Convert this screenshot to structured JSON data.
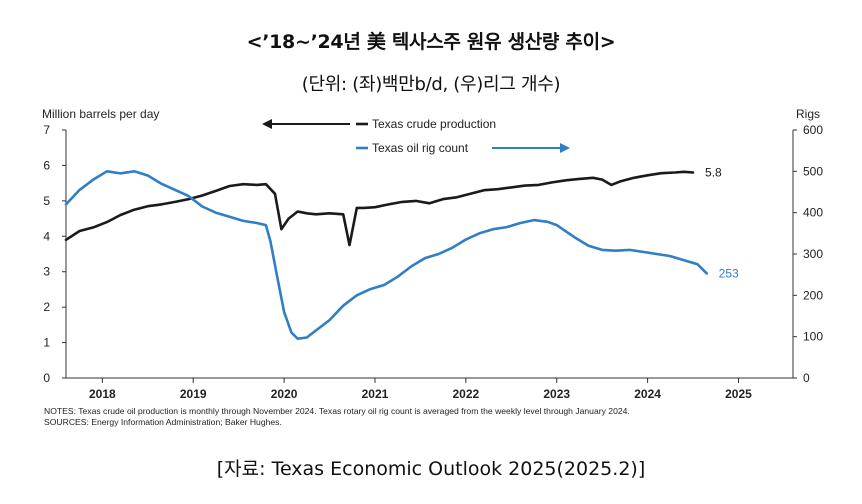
{
  "title_line1": "<’18~’24년 美 텍사스주 원유 생산량 추이>",
  "title_line2": "(단위: (좌)백만b/d, (우)리그 개수)",
  "source": "[자료: Texas Economic Outlook 2025(2025.2)]",
  "chart_data": {
    "type": "line",
    "left_axis_label": "Million barrels per day",
    "right_axis_label": "Rigs",
    "left_ylim": [
      0,
      7
    ],
    "right_ylim": [
      0,
      600
    ],
    "left_ticks": [
      "0",
      "1",
      "2",
      "3",
      "4",
      "5",
      "6",
      "7"
    ],
    "right_ticks": [
      "0",
      "100",
      "200",
      "300",
      "400",
      "500",
      "600"
    ],
    "x_ticks": [
      "2018",
      "2019",
      "2020",
      "2021",
      "2022",
      "2023",
      "2024",
      "2025"
    ],
    "xlim": [
      2017.6,
      2025.6
    ],
    "grid": false,
    "legend": [
      {
        "name": "Texas crude production",
        "color": "#1a1a1a",
        "axis": "left"
      },
      {
        "name": "Texas oil rig count",
        "color": "#2f7ec6",
        "axis": "right"
      }
    ],
    "series": [
      {
        "name": "Texas crude production",
        "color": "#1a1a1a",
        "axis": "left",
        "end_label": "5.8",
        "x": [
          2017.6,
          2017.75,
          2017.9,
          2018.05,
          2018.2,
          2018.35,
          2018.5,
          2018.65,
          2018.8,
          2018.95,
          2019.1,
          2019.25,
          2019.4,
          2019.55,
          2019.7,
          2019.8,
          2019.9,
          2019.97,
          2020.05,
          2020.15,
          2020.25,
          2020.35,
          2020.5,
          2020.65,
          2020.72,
          2020.8,
          2020.88,
          2021.0,
          2021.15,
          2021.3,
          2021.45,
          2021.6,
          2021.75,
          2021.9,
          2022.05,
          2022.2,
          2022.35,
          2022.5,
          2022.65,
          2022.8,
          2022.95,
          2023.1,
          2023.25,
          2023.4,
          2023.5,
          2023.6,
          2023.7,
          2023.85,
          2024.0,
          2024.15,
          2024.3,
          2024.4,
          2024.5
        ],
        "values": [
          3.9,
          4.15,
          4.25,
          4.4,
          4.6,
          4.75,
          4.85,
          4.9,
          4.97,
          5.05,
          5.15,
          5.28,
          5.42,
          5.47,
          5.45,
          5.47,
          5.2,
          4.2,
          4.5,
          4.7,
          4.65,
          4.62,
          4.65,
          4.62,
          3.75,
          4.8,
          4.8,
          4.82,
          4.9,
          4.97,
          5.0,
          4.93,
          5.05,
          5.1,
          5.2,
          5.3,
          5.33,
          5.38,
          5.43,
          5.45,
          5.52,
          5.58,
          5.62,
          5.65,
          5.6,
          5.45,
          5.55,
          5.65,
          5.72,
          5.78,
          5.8,
          5.82,
          5.8
        ]
      },
      {
        "name": "Texas oil rig count",
        "color": "#2f7ec6",
        "axis": "right",
        "end_label": "253",
        "x": [
          2017.6,
          2017.75,
          2017.9,
          2018.05,
          2018.2,
          2018.35,
          2018.5,
          2018.65,
          2018.8,
          2018.95,
          2019.1,
          2019.25,
          2019.4,
          2019.55,
          2019.7,
          2019.8,
          2019.85,
          2019.92,
          2020.0,
          2020.08,
          2020.15,
          2020.25,
          2020.35,
          2020.5,
          2020.65,
          2020.8,
          2020.95,
          2021.1,
          2021.25,
          2021.4,
          2021.55,
          2021.7,
          2021.85,
          2022.0,
          2022.15,
          2022.3,
          2022.45,
          2022.6,
          2022.75,
          2022.9,
          2023.0,
          2023.1,
          2023.2,
          2023.35,
          2023.5,
          2023.65,
          2023.8,
          2023.95,
          2024.1,
          2024.25,
          2024.4,
          2024.55,
          2024.65
        ],
        "values": [
          420,
          455,
          480,
          500,
          495,
          500,
          490,
          470,
          455,
          440,
          415,
          400,
          390,
          380,
          375,
          370,
          330,
          250,
          160,
          110,
          95,
          98,
          115,
          140,
          175,
          200,
          215,
          225,
          245,
          270,
          290,
          300,
          315,
          335,
          350,
          360,
          365,
          375,
          382,
          378,
          370,
          355,
          340,
          320,
          310,
          308,
          310,
          305,
          300,
          295,
          285,
          275,
          253
        ]
      }
    ],
    "notes": [
      "NOTES: Texas crude oil production is monthly through November 2024. Texas rotary oil rig count is averaged from the weekly level through January 2024.",
      "SOURCES: Energy Information Administration; Baker Hughes."
    ]
  }
}
